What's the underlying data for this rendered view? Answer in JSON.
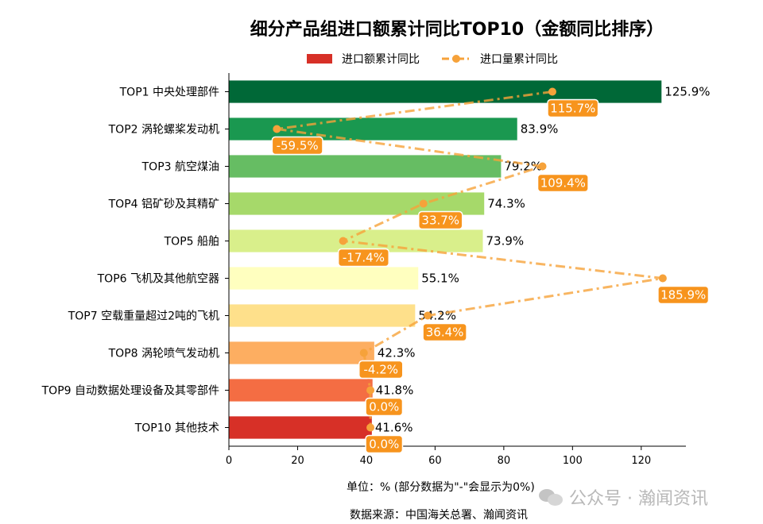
{
  "chart_data": {
    "type": "bar",
    "orientation": "horizontal",
    "title": "细分产品组进口额累计同比TOP10（金额同比排序）",
    "legend": {
      "placement": "top-center",
      "bar_label": "进口额累计同比",
      "line_label": "进口量累计同比"
    },
    "categories": [
      "TOP1 中央处理部件",
      "TOP2 涡轮螺桨发动机",
      "TOP3 航空煤油",
      "TOP4 铝矿砂及其精矿",
      "TOP5 船舶",
      "TOP6 飞机及其他航空器",
      "TOP7 空载重量超过2吨的飞机",
      "TOP8 涡轮喷气发动机",
      "TOP9 自动数据处理设备及其零部件",
      "TOP10 其他技术"
    ],
    "series": [
      {
        "name": "进口额累计同比",
        "type": "bar",
        "values": [
          125.9,
          83.9,
          79.2,
          74.3,
          73.9,
          55.1,
          54.2,
          42.3,
          41.8,
          41.6
        ],
        "labels": [
          "125.9%",
          "83.9%",
          "79.2%",
          "74.3%",
          "73.9%",
          "55.1%",
          "54.2%",
          "42.3%",
          "41.8%",
          "41.6%"
        ],
        "colors": [
          "#006837",
          "#1a9850",
          "#66bd63",
          "#a6d96a",
          "#d9ef8b",
          "#ffffbf",
          "#fee08b",
          "#fdae61",
          "#f46d43",
          "#d73027"
        ]
      },
      {
        "name": "进口量累计同比",
        "type": "line",
        "values": [
          115.7,
          -59.5,
          109.4,
          33.7,
          -17.4,
          185.9,
          36.4,
          -4.2,
          0.0,
          0.0
        ],
        "labels": [
          "115.7%",
          "-59.5%",
          "109.4%",
          "33.7%",
          "-17.4%",
          "185.9%",
          "36.4%",
          "-4.2%",
          "0.0%",
          "0.0%"
        ],
        "color": "#f6a23a"
      }
    ],
    "xlim": [
      0,
      133
    ],
    "xticks": [
      "0",
      "20",
      "40",
      "60",
      "80",
      "100",
      "120"
    ],
    "grid": false
  },
  "footer": {
    "unit_note": "单位：%  (部分数据为\"-\"会显示为0%)",
    "source_note": "数据来源：中国海关总署、瀚闻资讯",
    "watermark": "公众号 · 瀚闻资讯"
  }
}
